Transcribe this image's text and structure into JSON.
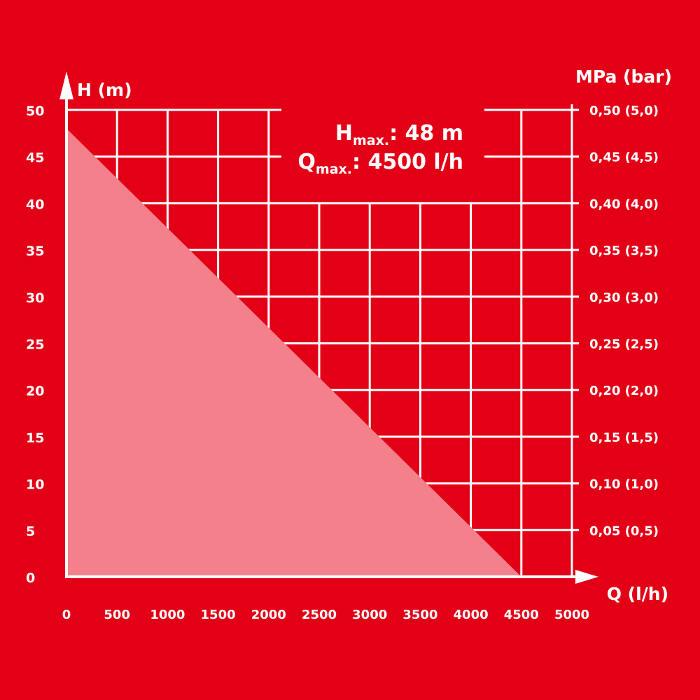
{
  "chart_data": {
    "type": "area",
    "x": [
      0,
      4500
    ],
    "y": [
      48,
      0
    ],
    "xlim": [
      0,
      5000
    ],
    "ylim": [
      0,
      50
    ],
    "xlabel": "Q (l/h)",
    "ylabel": "H (m)",
    "ylabel_right": "MPa (bar)",
    "x_ticks": [
      "0",
      "500",
      "1000",
      "1500",
      "2000",
      "2500",
      "3000",
      "3500",
      "4000",
      "4500",
      "5000"
    ],
    "y_ticks_left": [
      "0",
      "5",
      "10",
      "15",
      "20",
      "25",
      "30",
      "35",
      "40",
      "45",
      "50"
    ],
    "y_ticks_right": [
      "0,05 (0,5)",
      "0,10 (1,0)",
      "0,15 (1,5)",
      "0,20 (2,0)",
      "0,25 (2,5)",
      "0,30 (3,0)",
      "0,35 (3,5)",
      "0,40 (4,0)",
      "0,45 (4,5)",
      "0,50 (5,0)"
    ],
    "annotations": {
      "hmax": {
        "main": "H",
        "sub": "max.",
        "value": ": 48 m"
      },
      "qmax": {
        "main": "Q",
        "sub": "max.",
        "value": ": 4500 l/h"
      }
    },
    "grid": true,
    "colors": {
      "background": "#e30016",
      "area": "#f4808c",
      "grid": "#ffffff"
    }
  }
}
